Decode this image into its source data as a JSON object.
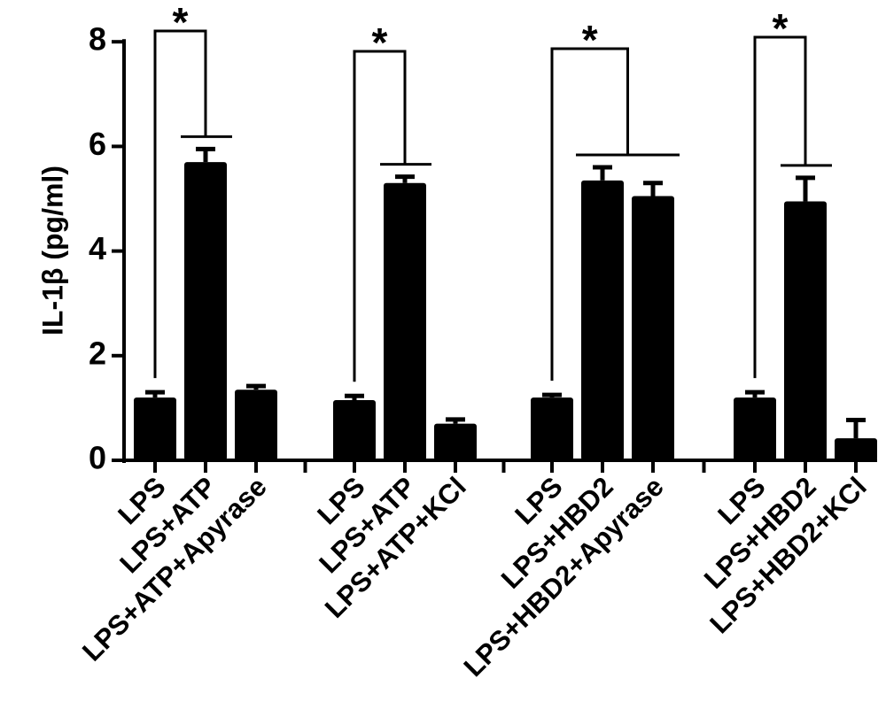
{
  "chart_data": {
    "type": "bar",
    "title": "",
    "xlabel": "",
    "ylabel": "IL-1β (pg/ml)",
    "ylim": [
      0,
      8
    ],
    "yticks": [
      "0",
      "2",
      "4",
      "6",
      "8"
    ],
    "color": "#000000",
    "groups": [
      {
        "categories": [
          "LPS",
          "LPS+ATP",
          "LPS+ATP+Apyrase"
        ],
        "values": [
          1.2,
          5.7,
          1.35
        ],
        "errors": [
          0.1,
          0.25,
          0.07
        ],
        "significance": {
          "label": "*",
          "from": 0,
          "to": 1
        }
      },
      {
        "categories": [
          "LPS",
          "LPS+ATP",
          "LPS+ATP+KCl"
        ],
        "values": [
          1.15,
          5.3,
          0.7
        ],
        "errors": [
          0.08,
          0.12,
          0.08
        ],
        "significance": {
          "label": "*",
          "from": 0,
          "to": 1
        }
      },
      {
        "categories": [
          "LPS",
          "LPS+HBD2",
          "LPS+HBD2+Apyrase"
        ],
        "values": [
          1.2,
          5.35,
          5.05
        ],
        "errors": [
          0.05,
          0.25,
          0.25
        ],
        "significance": {
          "label": "*",
          "from": 0,
          "to": [
            1,
            2
          ]
        }
      },
      {
        "categories": [
          "LPS",
          "LPS+HBD2",
          "LPS+HBD2+KCl"
        ],
        "values": [
          1.2,
          4.95,
          0.42
        ],
        "errors": [
          0.1,
          0.45,
          0.35
        ],
        "significance": {
          "label": "*",
          "from": 0,
          "to": 1
        }
      }
    ]
  }
}
